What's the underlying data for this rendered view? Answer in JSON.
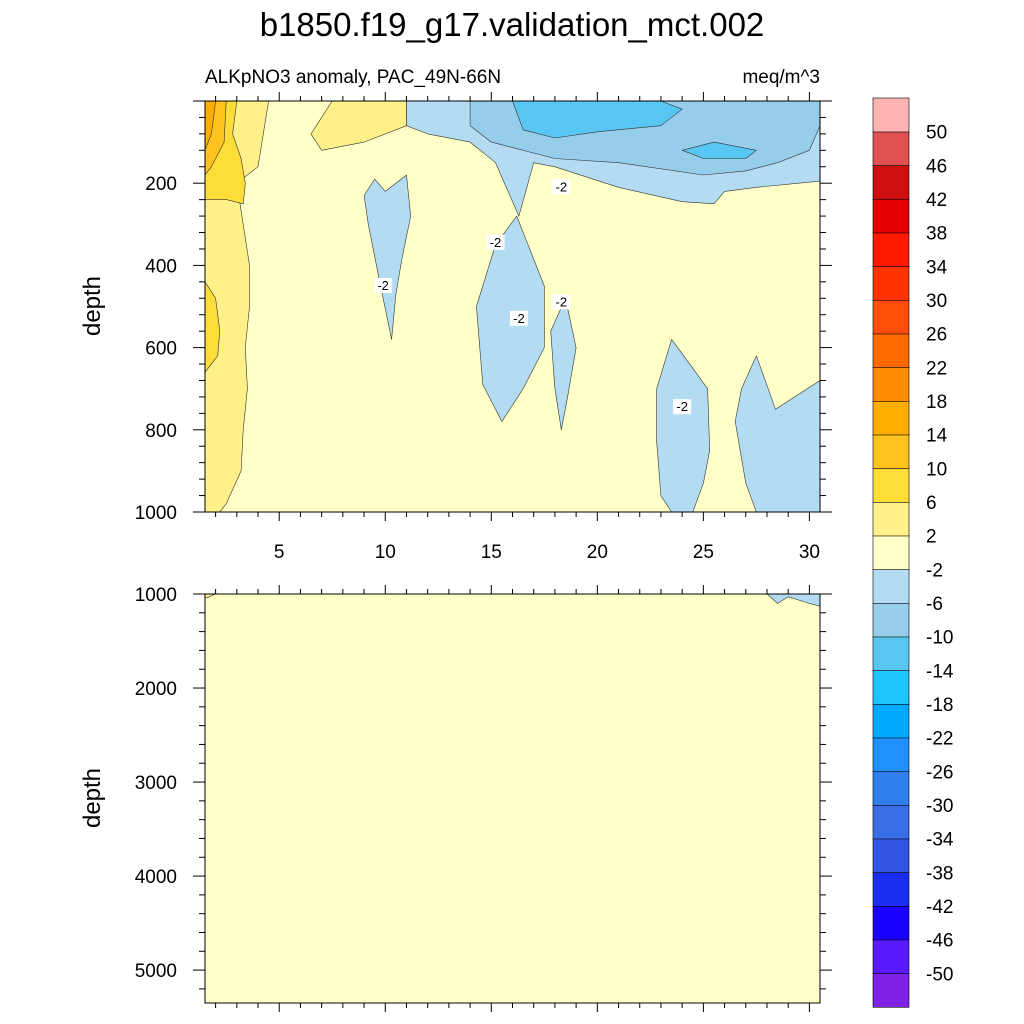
{
  "chart_data": {
    "type": "contour",
    "title": "b1850.f19_g17.validation_mct.002",
    "left_subtitle": "ALKpNO3 anomaly, PAC_49N-66N",
    "right_subtitle": "meq/m^3",
    "xlim": [
      1.5,
      30.5
    ],
    "x_ticks": [
      5,
      10,
      15,
      20,
      25,
      30
    ],
    "x_tick_labels": [
      "5",
      "10",
      "15",
      "20",
      "25",
      "30"
    ],
    "panels": [
      {
        "name": "upper",
        "ylabel": "depth",
        "ylim": [
          0,
          1000
        ],
        "y_ticks": [
          200,
          400,
          600,
          800,
          1000
        ],
        "y_tick_labels": [
          "200",
          "400",
          "600",
          "800",
          "1000"
        ],
        "background_level": "-2 to 2",
        "regions": [
          {
            "level": "2 to 6",
            "points": [
              [
                1.5,
                0
              ],
              [
                4.5,
                0
              ],
              [
                4,
                160
              ],
              [
                3,
                200
              ],
              [
                3.3,
                300
              ],
              [
                3.6,
                400
              ],
              [
                3.6,
                500
              ],
              [
                3.4,
                600
              ],
              [
                3.5,
                700
              ],
              [
                3.3,
                800
              ],
              [
                3.2,
                900
              ],
              [
                2.5,
                980
              ],
              [
                2.2,
                1000
              ],
              [
                1.5,
                1000
              ]
            ]
          },
          {
            "level": "2 to 6",
            "points": [
              [
                7.5,
                0
              ],
              [
                11,
                0
              ],
              [
                11,
                60
              ],
              [
                9,
                100
              ],
              [
                7,
                120
              ],
              [
                6.5,
                80
              ]
            ]
          },
          {
            "level": "6 to 10",
            "points": [
              [
                1.5,
                0
              ],
              [
                3,
                0
              ],
              [
                2.8,
                80
              ],
              [
                3.2,
                140
              ],
              [
                3.4,
                200
              ],
              [
                3.3,
                250
              ],
              [
                2.5,
                240
              ],
              [
                1.5,
                240
              ]
            ]
          },
          {
            "level": "6 to 10",
            "points": [
              [
                1.5,
                440
              ],
              [
                2,
                480
              ],
              [
                2.2,
                560
              ],
              [
                2.1,
                620
              ],
              [
                1.5,
                660
              ]
            ]
          },
          {
            "level": "10 to 14",
            "points": [
              [
                1.5,
                0
              ],
              [
                2.5,
                0
              ],
              [
                2.4,
                100
              ],
              [
                1.8,
                160
              ],
              [
                1.5,
                180
              ]
            ]
          },
          {
            "level": "14 to 18",
            "points": [
              [
                1.5,
                0
              ],
              [
                2,
                0
              ],
              [
                1.8,
                80
              ],
              [
                1.5,
                120
              ]
            ]
          },
          {
            "level": "-6 to -2",
            "points": [
              [
                11,
                0
              ],
              [
                30.5,
                0
              ],
              [
                30.5,
                195
              ],
              [
                29.5,
                200
              ],
              [
                27.5,
                210
              ],
              [
                26,
                220
              ],
              [
                25.5,
                250
              ],
              [
                24,
                245
              ],
              [
                21,
                210
              ],
              [
                18,
                160
              ],
              [
                17,
                150
              ],
              [
                16.3,
                280
              ],
              [
                15.2,
                150
              ],
              [
                14,
                100
              ],
              [
                12,
                80
              ],
              [
                11,
                60
              ]
            ]
          },
          {
            "level": "-6 to -2",
            "points": [
              [
                10,
                220
              ],
              [
                11,
                180
              ],
              [
                11.2,
                280
              ],
              [
                10.8,
                380
              ],
              [
                10.5,
                470
              ],
              [
                10.3,
                580
              ],
              [
                9.7,
                430
              ],
              [
                9.2,
                300
              ],
              [
                9,
                230
              ],
              [
                9.5,
                190
              ]
            ]
          },
          {
            "level": "-6 to -2",
            "points": [
              [
                16.2,
                280
              ],
              [
                17.5,
                450
              ],
              [
                17.5,
                600
              ],
              [
                16.5,
                700
              ],
              [
                15.5,
                780
              ],
              [
                14.6,
                690
              ],
              [
                14.3,
                500
              ],
              [
                15.2,
                350
              ]
            ]
          },
          {
            "level": "-6 to -2",
            "points": [
              [
                18.5,
                480
              ],
              [
                19,
                600
              ],
              [
                18.6,
                720
              ],
              [
                18.3,
                800
              ],
              [
                18,
                700
              ],
              [
                17.8,
                560
              ]
            ]
          },
          {
            "level": "-6 to -2",
            "points": [
              [
                23.5,
                580
              ],
              [
                24.5,
                650
              ],
              [
                25.2,
                700
              ],
              [
                25.3,
                850
              ],
              [
                25,
                930
              ],
              [
                24.5,
                1000
              ],
              [
                23.5,
                1000
              ],
              [
                23,
                960
              ],
              [
                22.8,
                830
              ],
              [
                22.8,
                700
              ]
            ]
          },
          {
            "level": "-6 to -2",
            "points": [
              [
                27.5,
                620
              ],
              [
                28.4,
                750
              ],
              [
                30.5,
                680
              ],
              [
                30.5,
                1000
              ],
              [
                27.5,
                1000
              ],
              [
                27,
                930
              ],
              [
                26.5,
                780
              ],
              [
                26.8,
                700
              ]
            ]
          },
          {
            "level": "-10 to -6",
            "points": [
              [
                14,
                0
              ],
              [
                30.5,
                0
              ],
              [
                30.5,
                60
              ],
              [
                30,
                120
              ],
              [
                28.5,
                150
              ],
              [
                27,
                170
              ],
              [
                25,
                180
              ],
              [
                21,
                150
              ],
              [
                18,
                140
              ],
              [
                15,
                100
              ],
              [
                14,
                60
              ]
            ]
          },
          {
            "level": "-14 to -10",
            "points": [
              [
                16,
                0
              ],
              [
                23,
                0
              ],
              [
                24,
                20
              ],
              [
                23,
                60
              ],
              [
                20,
                75
              ],
              [
                18,
                90
              ],
              [
                16.5,
                70
              ]
            ]
          },
          {
            "level": "-14 to -10",
            "points": [
              [
                24,
                120
              ],
              [
                25.5,
                100
              ],
              [
                27.5,
                120
              ],
              [
                27,
                140
              ],
              [
                25,
                140
              ]
            ]
          }
        ],
        "contour_labels": [
          {
            "text": "-2",
            "x": 9.9,
            "y": 450
          },
          {
            "text": "-2",
            "x": 15.2,
            "y": 345
          },
          {
            "text": "-2",
            "x": 16.3,
            "y": 530
          },
          {
            "text": "-2",
            "x": 18.3,
            "y": 210
          },
          {
            "text": "-2",
            "x": 18.3,
            "y": 490
          },
          {
            "text": "-2",
            "x": 24.0,
            "y": 745
          }
        ]
      },
      {
        "name": "lower",
        "ylabel": "depth",
        "ylim": [
          1000,
          5350
        ],
        "y_ticks": [
          1000,
          2000,
          3000,
          4000,
          5000
        ],
        "y_tick_labels": [
          "1000",
          "2000",
          "3000",
          "4000",
          "5000"
        ],
        "background_level": "-2 to 2",
        "regions": [
          {
            "level": "2 to 6",
            "points": [
              [
                1.5,
                1000
              ],
              [
                2,
                1000
              ],
              [
                1.6,
                1040
              ],
              [
                1.5,
                1040
              ]
            ]
          },
          {
            "level": "-6 to -2",
            "points": [
              [
                28,
                1000
              ],
              [
                30.5,
                1000
              ],
              [
                30.5,
                1130
              ],
              [
                30,
                1100
              ],
              [
                29,
                1030
              ],
              [
                28.5,
                1100
              ]
            ]
          }
        ],
        "contour_labels": []
      }
    ],
    "colorbar": {
      "levels": [
        "<-50",
        "-50 to -46",
        "-46 to -42",
        "-42 to -38",
        "-38 to -34",
        "-34 to -30",
        "-30 to -26",
        "-26 to -22",
        "-22 to -18",
        "-18 to -14",
        "-14 to -10",
        "-10 to -6",
        "-6 to -2",
        "-2 to 2",
        "2 to 6",
        "6 to 10",
        "10 to 14",
        "14 to 18",
        "18 to 22",
        "22 to 26",
        "26 to 30",
        "30 to 34",
        "34 to 38",
        "38 to 42",
        "42 to 46",
        "46 to 50",
        ">50"
      ],
      "colors": [
        "#7f22e6",
        "#5a1aff",
        "#1a00ff",
        "#1a2ef0",
        "#3355e3",
        "#3a6ee8",
        "#2f80ee",
        "#1e90ff",
        "#00abff",
        "#1ec4ff",
        "#58c6f2",
        "#95cdea",
        "#b3dcf2",
        "#ffffc8",
        "#fff08a",
        "#ffdd38",
        "#ffc21e",
        "#ffad00",
        "#ff8c00",
        "#ff6a00",
        "#ff4e0a",
        "#ff3200",
        "#ff1a00",
        "#e60000",
        "#cc1010",
        "#e05050",
        "#ffb3b3"
      ],
      "tick_labels": [
        "-50",
        "-46",
        "-42",
        "-38",
        "-34",
        "-30",
        "-26",
        "-22",
        "-18",
        "-14",
        "-10",
        "-6",
        "-2",
        "2",
        "6",
        "10",
        "14",
        "18",
        "22",
        "26",
        "30",
        "34",
        "38",
        "42",
        "46",
        "50"
      ]
    }
  }
}
